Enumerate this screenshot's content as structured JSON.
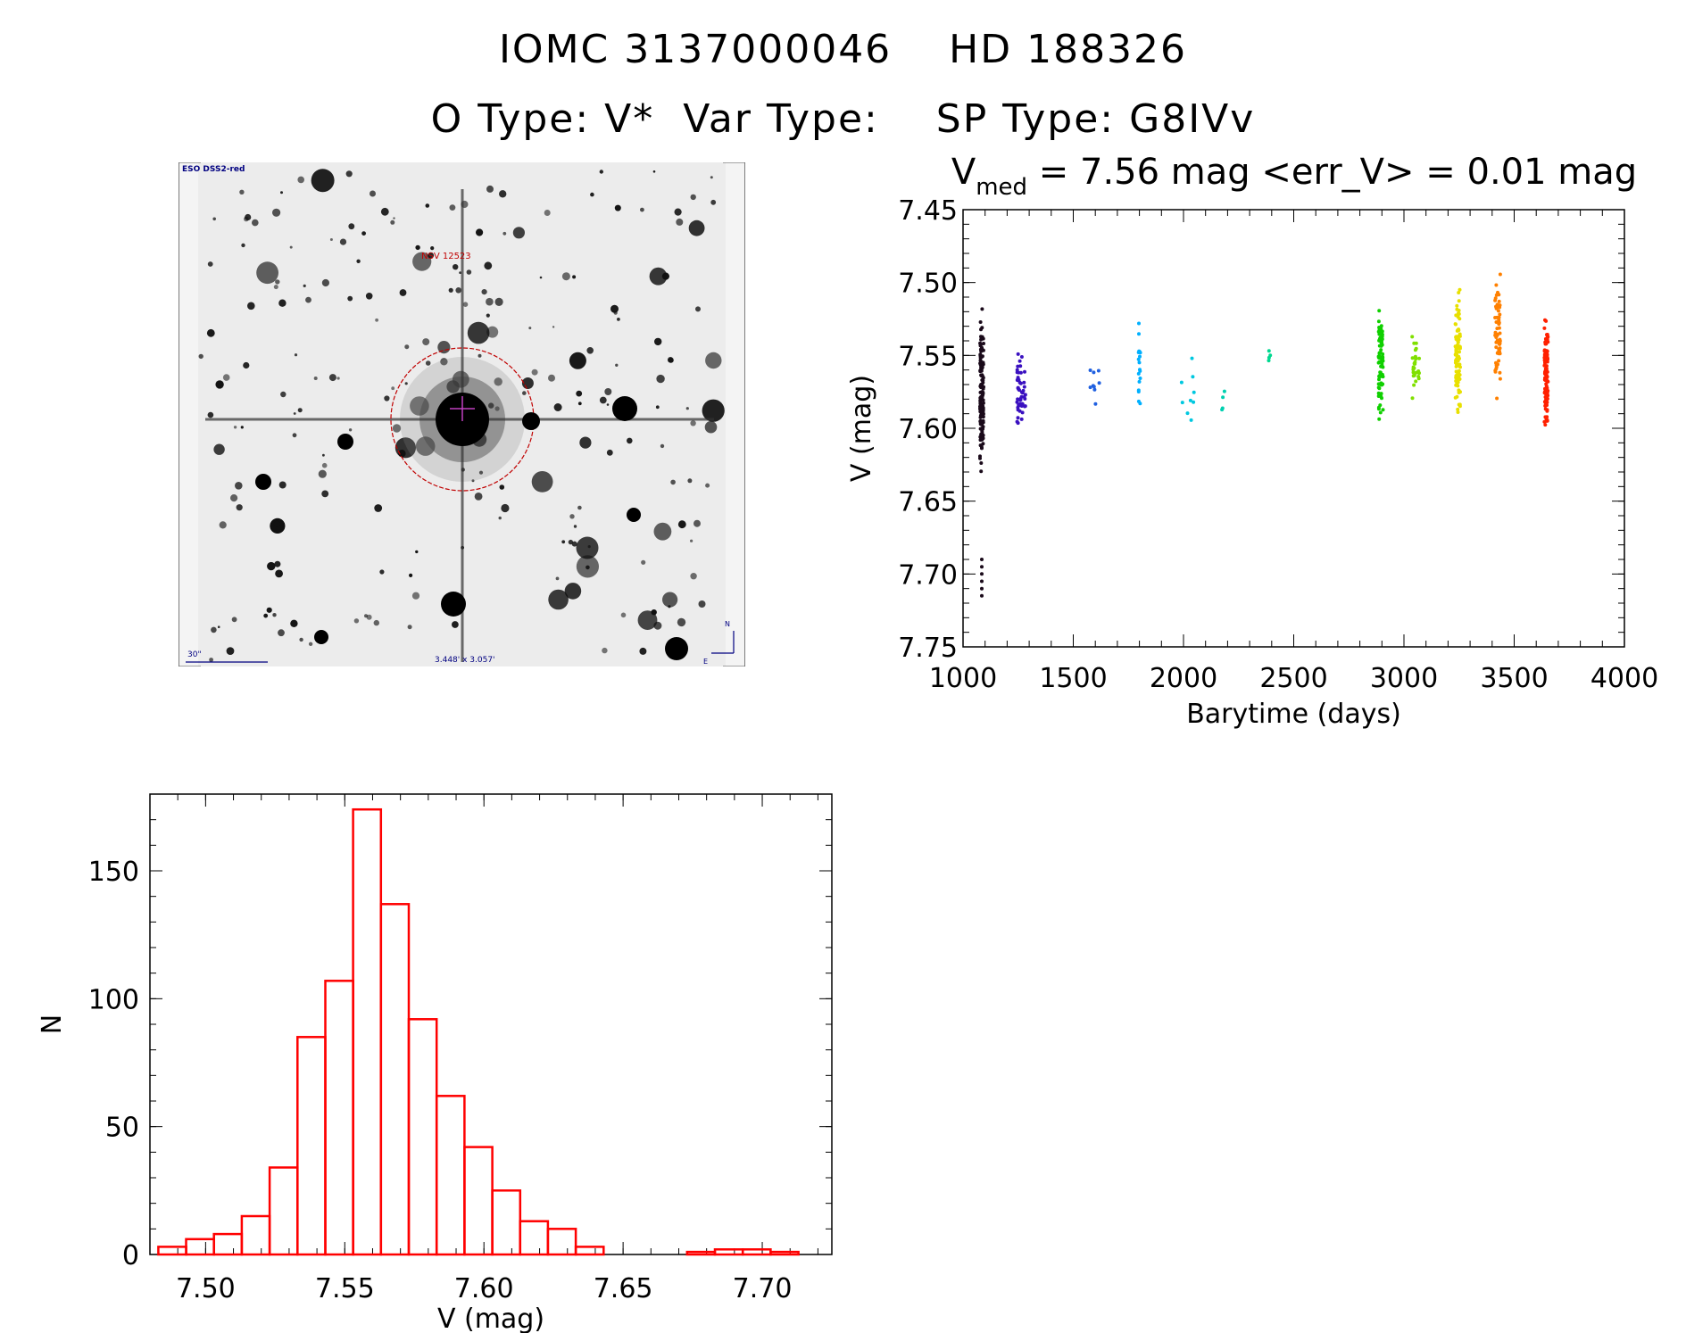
{
  "header": {
    "line1": "IOMC 3137000046    HD 188326",
    "line2": "O Type: V*  Var Type:    SP Type: G8IVv"
  },
  "finder_chart": {
    "survey_label": "ESO DSS2-red",
    "object_label": "NSV 12523",
    "scale_label": "30\"",
    "size_label": "3.448' x 3.057'",
    "north_label": "N",
    "east_label": "E"
  },
  "chart_data": [
    {
      "type": "scatter",
      "title_main": "V",
      "title_sub": "med",
      "title_rest": " = 7.56 mag <err_V> = 0.01 mag",
      "xlabel": "Barytime (days)",
      "ylabel": "V (mag)",
      "xlim": [
        1000,
        4000
      ],
      "ylim": [
        7.75,
        7.45
      ],
      "y_reversed": true,
      "xticks": [
        "1000",
        "1500",
        "2000",
        "2500",
        "3000",
        "3500",
        "4000"
      ],
      "yticks": [
        "7.45",
        "7.50",
        "7.55",
        "7.60",
        "7.65",
        "7.70",
        "7.75"
      ],
      "series": [
        {
          "color": "#1a0a1a",
          "x": 1085,
          "spread": 4,
          "vmin": 7.515,
          "vmax": 7.64,
          "n": 140,
          "extra": [
            7.69,
            7.695,
            7.7,
            7.705,
            7.71,
            7.715
          ]
        },
        {
          "color": "#3a10c0",
          "x": 1265,
          "spread": 10,
          "vmin": 7.53,
          "vmax": 7.615,
          "n": 50,
          "extra": []
        },
        {
          "color": "#2060e0",
          "x": 1595,
          "spread": 12,
          "vmin": 7.535,
          "vmax": 7.598,
          "n": 9,
          "extra": []
        },
        {
          "color": "#00b0ff",
          "x": 1800,
          "spread": 2,
          "vmin": 7.515,
          "vmax": 7.6,
          "n": 18,
          "extra": []
        },
        {
          "color": "#00c8e0",
          "x": 2020,
          "spread": 15,
          "vmin": 7.54,
          "vmax": 7.605,
          "n": 9,
          "extra": []
        },
        {
          "color": "#00d0b0",
          "x": 2180,
          "spread": 3,
          "vmin": 7.537,
          "vmax": 7.623,
          "n": 4,
          "extra": []
        },
        {
          "color": "#00d890",
          "x": 2390,
          "spread": 2,
          "vmin": 7.54,
          "vmax": 7.565,
          "n": 4,
          "extra": []
        },
        {
          "color": "#10d000",
          "x": 2895,
          "spread": 5,
          "vmin": 7.505,
          "vmax": 7.6,
          "n": 90,
          "extra": []
        },
        {
          "color": "#80e000",
          "x": 3055,
          "spread": 9,
          "vmin": 7.53,
          "vmax": 7.585,
          "n": 30,
          "extra": []
        },
        {
          "color": "#e8e000",
          "x": 3245,
          "spread": 6,
          "vmin": 7.49,
          "vmax": 7.62,
          "n": 90,
          "extra": []
        },
        {
          "color": "#ff8000",
          "x": 3425,
          "spread": 6,
          "vmin": 7.485,
          "vmax": 7.595,
          "n": 60,
          "extra": []
        },
        {
          "color": "#ff2000",
          "x": 3645,
          "spread": 4,
          "vmin": 7.513,
          "vmax": 7.61,
          "n": 110,
          "extra": []
        }
      ]
    },
    {
      "type": "bar",
      "xlabel": "V (mag)",
      "ylabel": "N",
      "xlim": [
        7.48,
        7.725
      ],
      "ylim": [
        0,
        180
      ],
      "xticks": [
        "7.50",
        "7.55",
        "7.60",
        "7.65",
        "7.70"
      ],
      "yticks": [
        "0",
        "50",
        "100",
        "150"
      ],
      "bin_width": 0.01,
      "bin_start": 7.483,
      "counts": [
        3,
        6,
        8,
        15,
        34,
        85,
        107,
        174,
        137,
        92,
        62,
        42,
        25,
        13,
        10,
        3,
        0,
        0,
        0,
        1,
        2,
        2,
        1
      ],
      "color": "#ff0000"
    }
  ]
}
